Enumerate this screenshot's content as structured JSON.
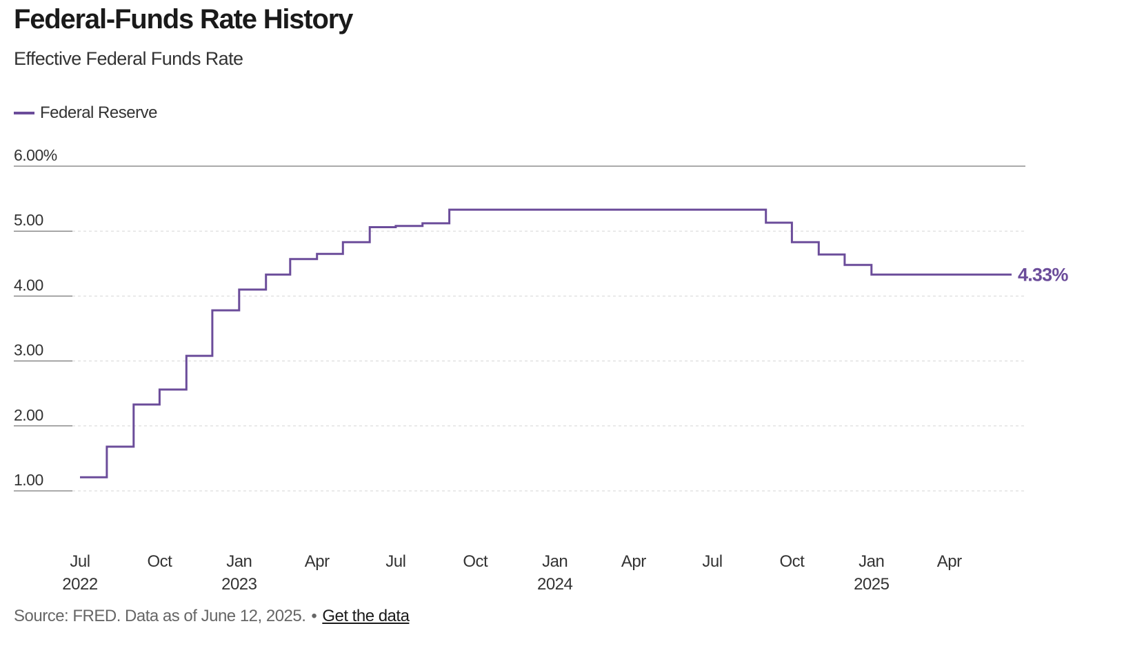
{
  "header": {
    "title": "Federal-Funds Rate History",
    "subtitle": "Effective Federal Funds Rate"
  },
  "legend": {
    "label": "Federal Reserve",
    "color": "#6b4c9a"
  },
  "footer": {
    "source": "Source: FRED. Data as of June 12, 2025.",
    "separator": "•",
    "link": "Get the data"
  },
  "chart_data": {
    "type": "line",
    "title": "Federal-Funds Rate History",
    "subtitle": "Effective Federal Funds Rate",
    "xlabel": "",
    "ylabel": "",
    "ylim": [
      1,
      6
    ],
    "xlim": [
      "2022-07-01",
      "2025-06-12"
    ],
    "grid": true,
    "legend_position": "top-left",
    "y_ticks": [
      {
        "value": 6,
        "label": "6.00%"
      },
      {
        "value": 5,
        "label": "5.00"
      },
      {
        "value": 4,
        "label": "4.00"
      },
      {
        "value": 3,
        "label": "3.00"
      },
      {
        "value": 2,
        "label": "2.00"
      },
      {
        "value": 1,
        "label": "1.00"
      }
    ],
    "x_ticks": [
      {
        "date": "2022-07-01",
        "label": "Jul",
        "year": "2022"
      },
      {
        "date": "2022-10-01",
        "label": "Oct",
        "year": ""
      },
      {
        "date": "2023-01-01",
        "label": "Jan",
        "year": "2023"
      },
      {
        "date": "2023-04-01",
        "label": "Apr",
        "year": ""
      },
      {
        "date": "2023-07-01",
        "label": "Jul",
        "year": ""
      },
      {
        "date": "2023-10-01",
        "label": "Oct",
        "year": ""
      },
      {
        "date": "2024-01-01",
        "label": "Jan",
        "year": "2024"
      },
      {
        "date": "2024-04-01",
        "label": "Apr",
        "year": ""
      },
      {
        "date": "2024-07-01",
        "label": "Jul",
        "year": ""
      },
      {
        "date": "2024-10-01",
        "label": "Oct",
        "year": ""
      },
      {
        "date": "2025-01-01",
        "label": "Jan",
        "year": "2025"
      },
      {
        "date": "2025-04-01",
        "label": "Apr",
        "year": ""
      }
    ],
    "end_label": "4.33%",
    "series": [
      {
        "name": "Federal Reserve",
        "color": "#6b4c9a",
        "step": true,
        "points": [
          {
            "date": "2022-07-01",
            "value": 1.21
          },
          {
            "date": "2022-08-01",
            "value": 1.68
          },
          {
            "date": "2022-09-01",
            "value": 2.33
          },
          {
            "date": "2022-10-01",
            "value": 2.56
          },
          {
            "date": "2022-11-01",
            "value": 3.08
          },
          {
            "date": "2022-12-01",
            "value": 3.78
          },
          {
            "date": "2023-01-01",
            "value": 4.1
          },
          {
            "date": "2023-02-01",
            "value": 4.33
          },
          {
            "date": "2023-03-01",
            "value": 4.57
          },
          {
            "date": "2023-04-01",
            "value": 4.65
          },
          {
            "date": "2023-05-01",
            "value": 4.83
          },
          {
            "date": "2023-06-01",
            "value": 5.06
          },
          {
            "date": "2023-07-01",
            "value": 5.08
          },
          {
            "date": "2023-08-01",
            "value": 5.12
          },
          {
            "date": "2023-09-01",
            "value": 5.33
          },
          {
            "date": "2024-09-01",
            "value": 5.13
          },
          {
            "date": "2024-10-01",
            "value": 4.83
          },
          {
            "date": "2024-11-01",
            "value": 4.64
          },
          {
            "date": "2024-12-01",
            "value": 4.48
          },
          {
            "date": "2025-01-01",
            "value": 4.33
          },
          {
            "date": "2025-06-12",
            "value": 4.33
          }
        ]
      }
    ]
  }
}
